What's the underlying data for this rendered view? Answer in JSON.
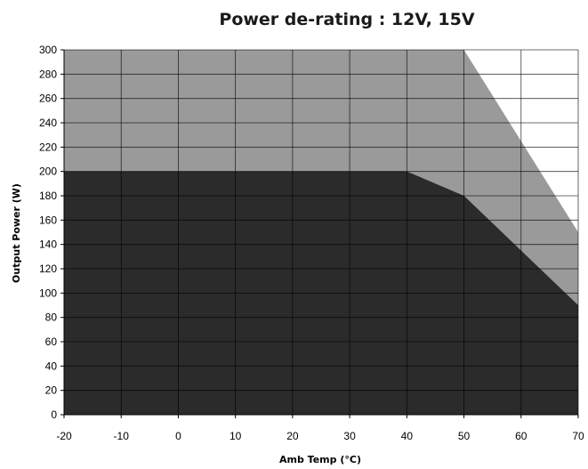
{
  "chart_data": {
    "type": "area",
    "title": "Power de-rating : 12V, 15V",
    "xlabel": "Amb Temp (°C)",
    "ylabel": "Output Power (W)",
    "xlim": [
      -20,
      70
    ],
    "ylim": [
      0,
      300
    ],
    "x_ticks": [
      -20,
      -10,
      0,
      10,
      20,
      30,
      40,
      50,
      60,
      70
    ],
    "y_ticks": [
      0,
      20,
      40,
      60,
      80,
      100,
      120,
      140,
      160,
      180,
      200,
      220,
      240,
      260,
      280,
      300
    ],
    "grid": true,
    "series": [
      {
        "x": [
          -20,
          50,
          70
        ],
        "y": [
          300,
          300,
          150
        ],
        "color": "#9a9a9a"
      },
      {
        "x": [
          -20,
          40,
          50,
          70
        ],
        "y": [
          200,
          200,
          180,
          90
        ],
        "color": "#2b2b2b"
      }
    ]
  }
}
